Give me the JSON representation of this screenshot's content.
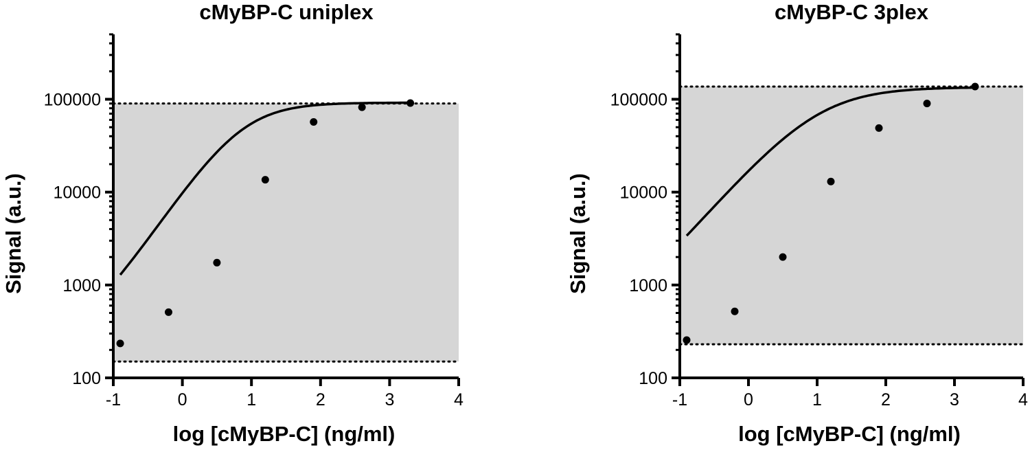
{
  "chart_data": [
    {
      "type": "scatter",
      "title": "cMyBP-C uniplex",
      "xlabel": "log [cMyBP-C] (ng/ml)",
      "ylabel": "Signal (a.u.)",
      "xlim": [
        -1,
        4
      ],
      "ylim": [
        100,
        500000
      ],
      "yscale": "log",
      "xticks": [
        -1,
        0,
        1,
        2,
        3,
        4
      ],
      "xtick_labels": [
        "-1",
        "0",
        "1",
        "2",
        "3",
        "4"
      ],
      "yticks": [
        100,
        1000,
        10000,
        100000
      ],
      "ytick_labels": [
        "100",
        "1000",
        "10000",
        "100000"
      ],
      "points": {
        "x": [
          -0.9,
          -0.2,
          0.5,
          1.2,
          1.9,
          2.6,
          3.3
        ],
        "y": [
          235,
          510,
          1740,
          13600,
          57000,
          82000,
          91000
        ]
      },
      "fit": {
        "model": "4PL",
        "bottom": 210,
        "top": 92000,
        "log_ec50": 0.85,
        "hill_slope": 1.1,
        "x_range": [
          -0.9,
          3.3
        ]
      },
      "range_lines": {
        "upper": 90000,
        "lower": 150
      }
    },
    {
      "type": "scatter",
      "title": "cMyBP-C 3plex",
      "xlabel": "log [cMyBP-C] (ng/ml)",
      "ylabel": "Signal (a.u.)",
      "xlim": [
        -1,
        4
      ],
      "ylim": [
        100,
        500000
      ],
      "yscale": "log",
      "xticks": [
        -1,
        0,
        1,
        2,
        3,
        4
      ],
      "xtick_labels": [
        "-1",
        "0",
        "1",
        "2",
        "3",
        "4"
      ],
      "yticks": [
        100,
        1000,
        10000,
        100000
      ],
      "ytick_labels": [
        "100",
        "1000",
        "10000",
        "100000"
      ],
      "points": {
        "x": [
          -0.9,
          -0.2,
          0.5,
          1.2,
          1.9,
          2.6,
          3.3
        ],
        "y": [
          255,
          520,
          2000,
          13000,
          49000,
          90000,
          137000
        ]
      },
      "fit": {
        "model": "4PL",
        "bottom": 200,
        "top": 135000,
        "log_ec50": 1.0,
        "hill_slope": 0.85,
        "x_range": [
          -0.9,
          3.3
        ]
      },
      "range_lines": {
        "upper": 137000,
        "lower": 230
      }
    }
  ]
}
